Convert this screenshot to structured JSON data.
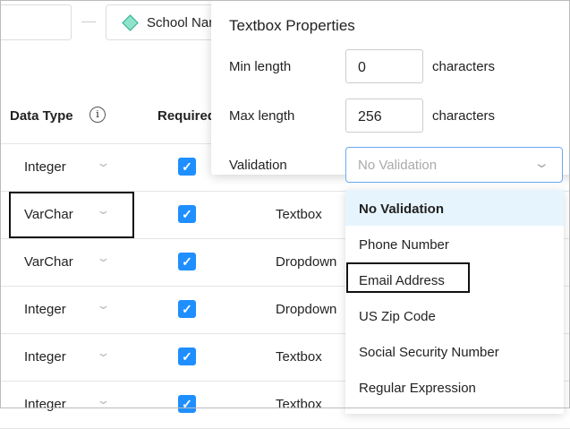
{
  "top": {
    "chip_label": "School Nar"
  },
  "table": {
    "headers": {
      "data_type": "Data Type",
      "required": "Required"
    },
    "rows": [
      {
        "data_type": "Integer",
        "required": true,
        "control": ""
      },
      {
        "data_type": "VarChar",
        "required": true,
        "control": "Textbox"
      },
      {
        "data_type": "VarChar",
        "required": true,
        "control": "Dropdown"
      },
      {
        "data_type": "Integer",
        "required": true,
        "control": "Dropdown"
      },
      {
        "data_type": "Integer",
        "required": true,
        "control": "Textbox"
      },
      {
        "data_type": "Integer",
        "required": true,
        "control": "Textbox"
      }
    ]
  },
  "popover": {
    "title": "Textbox Properties",
    "min_label": "Min length",
    "min_value": "0",
    "max_label": "Max length",
    "max_value": "256",
    "unit": "characters",
    "validation_label": "Validation",
    "validation_placeholder": "No Validation",
    "options": [
      "No Validation",
      "Phone Number",
      "Email Address",
      "US Zip Code",
      "Social Security Number",
      "Regular Expression"
    ]
  },
  "colors": {
    "accent": "#1f8fff",
    "highlight": "#e6f4fd"
  }
}
